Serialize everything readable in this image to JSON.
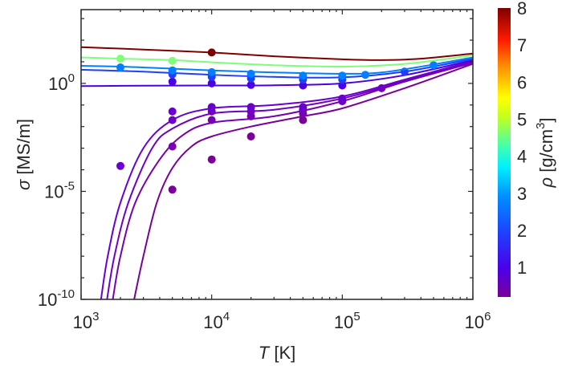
{
  "chart_data": {
    "type": "line",
    "title": "",
    "xlabel": {
      "symbol": "T",
      "unit": " [K]"
    },
    "ylabel": {
      "symbol": "σ",
      "unit": " [MS/m]"
    },
    "xscale": "log",
    "yscale": "log",
    "xlim": [
      1000,
      1000000
    ],
    "ylim": [
      1e-10,
      2600
    ],
    "x_ticks": [
      {
        "base": "10",
        "exp": "3",
        "value": 1000
      },
      {
        "base": "10",
        "exp": "4",
        "value": 10000
      },
      {
        "base": "10",
        "exp": "5",
        "value": 100000
      },
      {
        "base": "10",
        "exp": "6",
        "value": 1000000
      }
    ],
    "y_ticks": [
      {
        "base": "10",
        "exp": "0",
        "value": 1
      },
      {
        "base": "10",
        "exp": "-5",
        "value": 1e-05
      },
      {
        "base": "10",
        "exp": "-10",
        "value": 1e-10
      }
    ],
    "grid": false,
    "colorbar": {
      "label_symbol": "ρ",
      "label_unit": " [g/cm",
      "label_exp": "3",
      "label_close": "]",
      "min": 0.2,
      "max": 8,
      "ticks": [
        "1",
        "2",
        "3",
        "4",
        "5",
        "6",
        "7",
        "8"
      ],
      "colormap": "jet",
      "position": "right"
    },
    "series": [
      {
        "name": "rho-8",
        "rho": 8,
        "color": "#7f0000",
        "curve": [
          [
            1000,
            48
          ],
          [
            3000,
            37
          ],
          [
            10000,
            27
          ],
          [
            30000,
            18
          ],
          [
            100000,
            13
          ],
          [
            200000,
            12
          ],
          [
            400000,
            14
          ],
          [
            1000000,
            24
          ]
        ],
        "points": [
          [
            10000,
            27
          ]
        ]
      },
      {
        "name": "rho-4",
        "rho": 4,
        "color": "#7dff7a",
        "curve": [
          [
            1000,
            16
          ],
          [
            2000,
            14
          ],
          [
            5000,
            12
          ],
          [
            10000,
            9.5
          ],
          [
            30000,
            7
          ],
          [
            100000,
            6
          ],
          [
            300000,
            8
          ],
          [
            1000000,
            20
          ]
        ],
        "points": [
          [
            2000,
            14
          ],
          [
            5000,
            11
          ]
        ]
      },
      {
        "name": "rho-2",
        "rho": 2,
        "color": "#0080ff",
        "curve": [
          [
            1000,
            6.5
          ],
          [
            2000,
            6
          ],
          [
            5000,
            4.8
          ],
          [
            10000,
            4
          ],
          [
            30000,
            3.2
          ],
          [
            100000,
            2.8
          ],
          [
            200000,
            3.2
          ],
          [
            500000,
            7.5
          ],
          [
            1000000,
            16
          ]
        ],
        "points": [
          [
            2000,
            5.5
          ],
          [
            5000,
            4
          ],
          [
            10000,
            3.3
          ],
          [
            20000,
            2.8
          ],
          [
            50000,
            2.3
          ],
          [
            100000,
            2.3
          ],
          [
            150000,
            2.5
          ],
          [
            500000,
            7
          ]
        ]
      },
      {
        "name": "rho-1.5",
        "rho": 1.5,
        "color": "#1f3fff",
        "curve": [
          [
            1000,
            4.3
          ],
          [
            3000,
            3.5
          ],
          [
            10000,
            2.5
          ],
          [
            30000,
            2
          ],
          [
            100000,
            1.9
          ],
          [
            300000,
            3.5
          ],
          [
            1000000,
            14
          ]
        ],
        "points": [
          [
            5000,
            2.6
          ],
          [
            10000,
            2
          ],
          [
            20000,
            1.7
          ],
          [
            50000,
            1.5
          ],
          [
            100000,
            1.5
          ],
          [
            300000,
            3.5
          ]
        ]
      },
      {
        "name": "rho-1",
        "rho": 1,
        "color": "#4b00e8",
        "curve": [
          [
            1000,
            0.75
          ],
          [
            3000,
            0.78
          ],
          [
            10000,
            0.8
          ],
          [
            30000,
            0.82
          ],
          [
            100000,
            1.0
          ],
          [
            300000,
            2.4
          ],
          [
            1000000,
            12
          ]
        ],
        "points": [
          [
            5000,
            1.2
          ],
          [
            10000,
            1.0
          ],
          [
            20000,
            0.85
          ],
          [
            50000,
            0.8
          ],
          [
            100000,
            0.8
          ]
        ]
      },
      {
        "name": "rho-0.5",
        "rho": 0.5,
        "color": "#6a00d0",
        "curve": [
          [
            1420,
            1e-10
          ],
          [
            1600,
            1e-08
          ],
          [
            2000,
            3e-06
          ],
          [
            3000,
            0.001
          ],
          [
            5000,
            0.02
          ],
          [
            10000,
            0.07
          ],
          [
            30000,
            0.1
          ],
          [
            100000,
            0.25
          ],
          [
            300000,
            1.5
          ],
          [
            1000000,
            11
          ]
        ],
        "points": [
          [
            2000,
            0.00015
          ],
          [
            5000,
            0.05
          ],
          [
            10000,
            0.08
          ],
          [
            20000,
            0.08
          ],
          [
            50000,
            0.08
          ],
          [
            100000,
            0.2
          ]
        ]
      },
      {
        "name": "rho-0.3",
        "rho": 0.3,
        "color": "#7200c0",
        "curve": [
          [
            1580,
            1e-10
          ],
          [
            1800,
            1e-08
          ],
          [
            2300,
            3e-06
          ],
          [
            3500,
            0.001
          ],
          [
            5000,
            0.008
          ],
          [
            10000,
            0.04
          ],
          [
            30000,
            0.06
          ],
          [
            100000,
            0.2
          ],
          [
            300000,
            1.3
          ],
          [
            1000000,
            10
          ]
        ],
        "points": [
          [
            5000,
            0.02
          ],
          [
            10000,
            0.05
          ],
          [
            20000,
            0.05
          ],
          [
            50000,
            0.06
          ],
          [
            100000,
            0.15
          ],
          [
            200000,
            0.6
          ]
        ]
      },
      {
        "name": "rho-0.2",
        "rho": 0.2,
        "color": "#7800b0",
        "curve": [
          [
            1750,
            1e-10
          ],
          [
            2000,
            1e-08
          ],
          [
            2600,
            3e-06
          ],
          [
            4000,
            0.0003
          ],
          [
            6000,
            0.004
          ],
          [
            10000,
            0.015
          ],
          [
            30000,
            0.03
          ],
          [
            100000,
            0.15
          ],
          [
            300000,
            1.2
          ],
          [
            1000000,
            9
          ]
        ],
        "points": [
          [
            5000,
            0.0012
          ],
          [
            10000,
            0.02
          ],
          [
            20000,
            0.03
          ],
          [
            50000,
            0.04
          ]
        ]
      },
      {
        "name": "rho-0.1",
        "rho": 0.1,
        "color": "#7a0099",
        "curve": [
          [
            2550,
            1e-10
          ],
          [
            3000,
            1e-08
          ],
          [
            3800,
            3e-06
          ],
          [
            5000,
            0.00012
          ],
          [
            7000,
            0.0012
          ],
          [
            10000,
            0.0035
          ],
          [
            20000,
            0.01
          ],
          [
            50000,
            0.03
          ],
          [
            100000,
            0.07
          ],
          [
            300000,
            0.6
          ],
          [
            1000000,
            8
          ]
        ],
        "points": [
          [
            5000,
            1.2e-05
          ],
          [
            10000,
            0.0003
          ],
          [
            20000,
            0.0035
          ],
          [
            50000,
            0.02
          ]
        ]
      }
    ]
  }
}
